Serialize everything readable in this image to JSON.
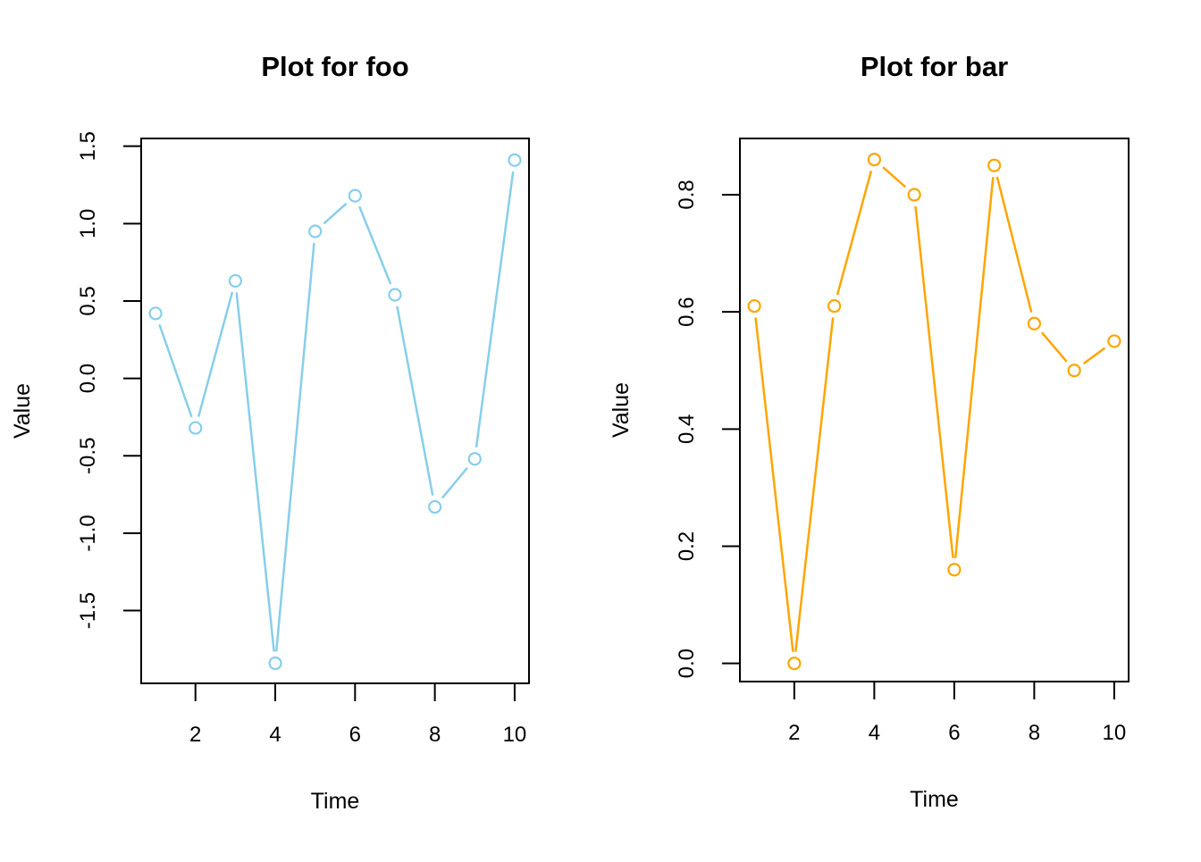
{
  "figure": {
    "background": "#ffffff",
    "panel_count": 2
  },
  "chart_data": [
    {
      "type": "line",
      "title": "Plot for foo",
      "xlabel": "Time",
      "ylabel": "Value",
      "series": [
        {
          "name": "foo",
          "x": [
            1,
            2,
            3,
            4,
            5,
            6,
            7,
            8,
            9,
            10
          ],
          "values": [
            0.42,
            -0.32,
            0.63,
            -1.84,
            0.95,
            1.18,
            0.54,
            -0.83,
            -0.52,
            1.41
          ],
          "color": "#87CEEB",
          "marker": "open-circle",
          "line_style": "segments-with-gaps"
        }
      ],
      "xlim": [
        0.64,
        10.36
      ],
      "ylim": [
        -1.97,
        1.55
      ],
      "xticks": [
        2,
        4,
        6,
        8,
        10
      ],
      "xtick_labels": [
        "2",
        "4",
        "6",
        "8",
        "10"
      ],
      "yticks": [
        -1.5,
        -1.0,
        -0.5,
        0.0,
        0.5,
        1.0,
        1.5
      ],
      "ytick_labels": [
        "-1.5",
        "-1.0",
        "-0.5",
        "0.0",
        "0.5",
        "1.0",
        "1.5"
      ],
      "grid": false,
      "legend": "none",
      "axis_color": "#000000",
      "text_color": "#000000"
    },
    {
      "type": "line",
      "title": "Plot for bar",
      "xlabel": "Time",
      "ylabel": "Value",
      "series": [
        {
          "name": "bar",
          "x": [
            1,
            2,
            3,
            4,
            5,
            6,
            7,
            8,
            9,
            10
          ],
          "values": [
            0.61,
            0.0,
            0.61,
            0.86,
            0.8,
            0.16,
            0.85,
            0.58,
            0.5,
            0.55
          ],
          "color": "#FFA500",
          "marker": "open-circle",
          "line_style": "segments-with-gaps"
        }
      ],
      "xlim": [
        0.64,
        10.36
      ],
      "ylim": [
        -0.031,
        0.896
      ],
      "xticks": [
        2,
        4,
        6,
        8,
        10
      ],
      "xtick_labels": [
        "2",
        "4",
        "6",
        "8",
        "10"
      ],
      "yticks": [
        0.0,
        0.2,
        0.4,
        0.6,
        0.8
      ],
      "ytick_labels": [
        "0.0",
        "0.2",
        "0.4",
        "0.6",
        "0.8"
      ],
      "grid": false,
      "legend": "none",
      "axis_color": "#000000",
      "text_color": "#000000"
    }
  ]
}
